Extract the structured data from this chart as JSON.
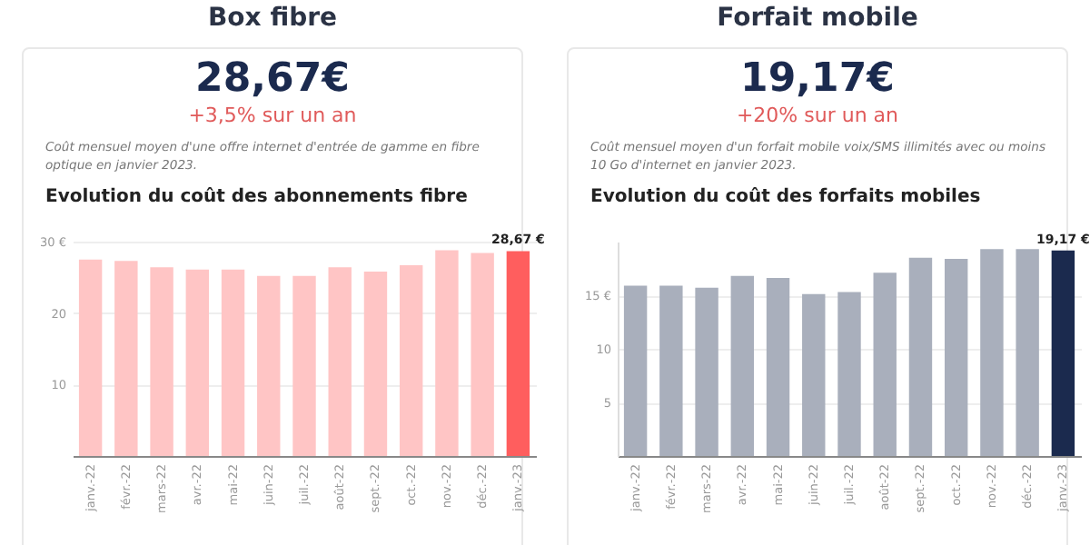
{
  "chart_data": [
    {
      "type": "bar",
      "title": "Box fibre",
      "subtitle": "Evolution du coût des abonnements fibre",
      "annotations": [
        "28,67€",
        "+3,5% sur un an",
        "Coût mensuel moyen d'une offre internet d'entrée de gamme en fibre optique en janvier 2023."
      ],
      "categories": [
        "janv.-22",
        "févr.-22",
        "mars-22",
        "avr.-22",
        "mai-22",
        "juin-22",
        "juil.-22",
        "août-22",
        "sept.-22",
        "oct.-22",
        "nov.-22",
        "déc.-22",
        "janv.-23"
      ],
      "values": [
        27.5,
        27.3,
        26.4,
        26.1,
        26.1,
        25.2,
        25.2,
        26.4,
        25.8,
        26.7,
        28.8,
        28.4,
        28.67
      ],
      "colors": [
        "#ffc5c5",
        "#ffc5c5",
        "#ffc5c5",
        "#ffc5c5",
        "#ffc5c5",
        "#ffc5c5",
        "#ffc5c5",
        "#ffc5c5",
        "#ffc5c5",
        "#ffc5c5",
        "#ffc5c5",
        "#ffc5c5",
        "#ff5e5e"
      ],
      "value_labels": [
        null,
        null,
        null,
        null,
        null,
        null,
        null,
        null,
        null,
        null,
        null,
        null,
        "28,67 €"
      ],
      "ylim": [
        0,
        30
      ],
      "yticks": [
        10,
        20,
        {
          "value": 30,
          "label": "30 €"
        }
      ],
      "grid": "y"
    },
    {
      "type": "bar",
      "title": "Forfait mobile",
      "subtitle": "Evolution du coût des forfaits mobiles",
      "annotations": [
        "19,17€",
        "+20% sur un an",
        "Coût mensuel moyen d'un forfait mobile voix/SMS illimités avec ou moins 10 Go d'internet en janvier 2023."
      ],
      "categories": [
        "janv.-22",
        "févr.-22",
        "mars-22",
        "avr.-22",
        "mai-22",
        "juin-22",
        "juil.-22",
        "août-22",
        "sept.-22",
        "oct.-22",
        "nov.-22",
        "déc.-22",
        "janv.-23"
      ],
      "values": [
        15.9,
        15.9,
        15.7,
        16.8,
        16.6,
        15.1,
        15.3,
        17.1,
        18.5,
        18.4,
        19.3,
        19.3,
        19.17
      ],
      "colors": [
        "#a9afbc",
        "#a9afbc",
        "#a9afbc",
        "#a9afbc",
        "#a9afbc",
        "#a9afbc",
        "#a9afbc",
        "#a9afbc",
        "#a9afbc",
        "#a9afbc",
        "#a9afbc",
        "#a9afbc",
        "#1b2a4e"
      ],
      "value_labels": [
        null,
        null,
        null,
        null,
        null,
        null,
        null,
        null,
        null,
        null,
        null,
        null,
        "19,17 €"
      ],
      "ylim": [
        0,
        20
      ],
      "yticks": [
        5,
        10,
        {
          "value": 15,
          "label": "15 €"
        }
      ],
      "grid": "y"
    }
  ]
}
